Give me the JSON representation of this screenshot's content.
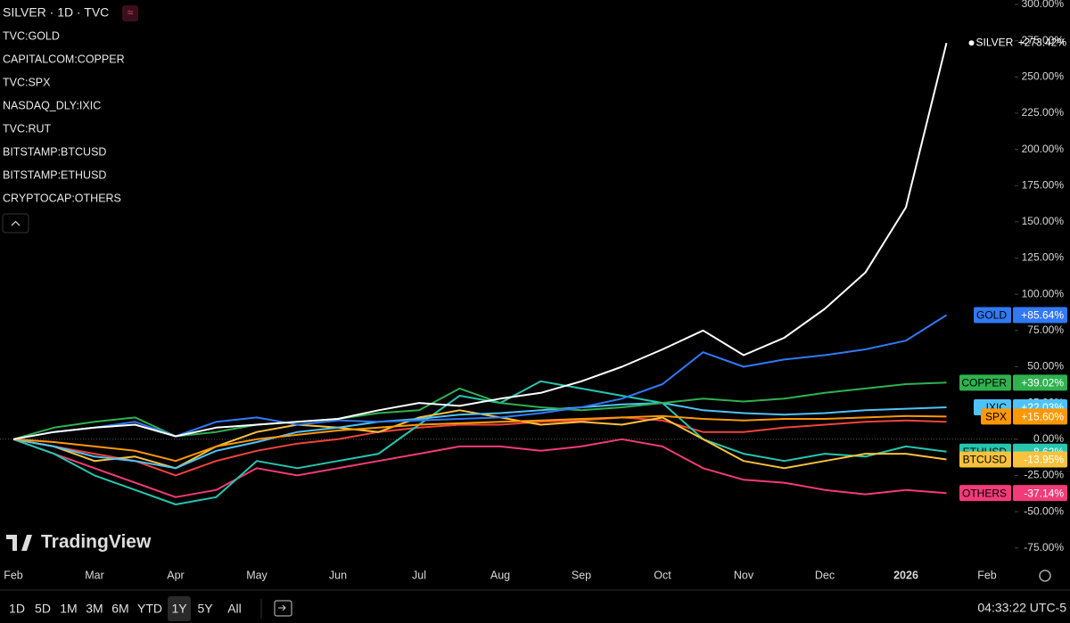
{
  "chart_data": {
    "type": "line",
    "title": "SILVER · 1D · TVC",
    "symbols": [
      "TVC:GOLD",
      "CAPITALCOM:COPPER",
      "TVC:SPX",
      "NASDAQ_DLY:IXIC",
      "TVC:RUT",
      "BITSTAMP:BTCUSD",
      "BITSTAMP:ETHUSD",
      "CRYPTOCAP:OTHERS"
    ],
    "categories": [
      "Feb",
      null,
      "Mar",
      null,
      "Apr",
      null,
      "May",
      null,
      "Jun",
      null,
      "Jul",
      null,
      "Aug",
      null,
      "Sep",
      null,
      "Oct",
      null,
      "Nov",
      null,
      "Dec",
      null,
      "2026",
      null,
      "Feb"
    ],
    "ylim": [
      -85,
      300
    ],
    "yticks": [
      {
        "value": -75,
        "label": "-75.00%"
      },
      {
        "value": -50,
        "label": "-50.00%"
      },
      {
        "value": -25,
        "label": "-25.00%"
      },
      {
        "value": 0,
        "label": "0.00%"
      },
      {
        "value": 25,
        "label": "25.00%"
      },
      {
        "value": 50,
        "label": "50.00%"
      },
      {
        "value": 75,
        "label": "75.00%"
      },
      {
        "value": 100,
        "label": "100.00%"
      },
      {
        "value": 125,
        "label": "125.00%"
      },
      {
        "value": 150,
        "label": "150.00%"
      },
      {
        "value": 175,
        "label": "175.00%"
      },
      {
        "value": 200,
        "label": "200.00%"
      },
      {
        "value": 225,
        "label": "225.00%"
      },
      {
        "value": 250,
        "label": "250.00%"
      },
      {
        "value": 275,
        "label": "275.00%"
      },
      {
        "value": 300,
        "label": "300.00%"
      }
    ],
    "grid": false,
    "series": [
      {
        "name": "RUT",
        "color": "#f0443a",
        "values": [
          0,
          -5,
          -10,
          -15,
          -25,
          -15,
          -8,
          -3,
          0,
          5,
          8,
          10,
          10,
          12,
          13,
          15,
          13,
          5,
          5,
          8,
          10,
          12,
          13,
          12,
          null
        ]
      },
      {
        "name": "OTHERS",
        "color": "#f23b78",
        "values": [
          0,
          -10,
          -20,
          -30,
          -40,
          -35,
          -20,
          -25,
          -20,
          -15,
          -10,
          -5,
          -5,
          -8,
          -5,
          0,
          -5,
          -20,
          -28,
          -30,
          -35,
          -38,
          -35,
          -37.14,
          null
        ],
        "value_labels": [
          null,
          null,
          null,
          null,
          null,
          null,
          null,
          null,
          null,
          null,
          null,
          null,
          null,
          null,
          null,
          null,
          null,
          null,
          null,
          null,
          null,
          null,
          null,
          "-37.14%",
          null
        ]
      },
      {
        "name": "ETHUSD",
        "color": "#26c6b0",
        "values": [
          0,
          -10,
          -25,
          -35,
          -45,
          -40,
          -15,
          -20,
          -15,
          -10,
          10,
          30,
          25,
          40,
          35,
          30,
          25,
          0,
          -10,
          -15,
          -10,
          -12,
          -5,
          -8.62,
          null
        ],
        "value_labels": [
          null,
          null,
          null,
          null,
          null,
          null,
          null,
          null,
          null,
          null,
          null,
          null,
          null,
          null,
          null,
          null,
          null,
          null,
          null,
          null,
          null,
          null,
          null,
          "-8.62%",
          null
        ]
      },
      {
        "name": "BTCUSD",
        "color": "#f9c23c",
        "values": [
          0,
          -5,
          -15,
          -12,
          -20,
          -5,
          5,
          10,
          8,
          5,
          15,
          20,
          15,
          10,
          12,
          10,
          15,
          0,
          -15,
          -20,
          -15,
          -10,
          -10,
          -13.95,
          null
        ],
        "value_labels": [
          null,
          null,
          null,
          null,
          null,
          null,
          null,
          null,
          null,
          null,
          null,
          null,
          null,
          null,
          null,
          null,
          null,
          null,
          null,
          null,
          null,
          null,
          null,
          "-13.95%",
          null
        ]
      },
      {
        "name": "IXIC",
        "color": "#4fc3f7",
        "values": [
          0,
          -5,
          -12,
          -15,
          -20,
          -8,
          -2,
          5,
          8,
          12,
          14,
          17,
          18,
          20,
          22,
          24,
          25,
          20,
          18,
          17,
          18,
          20,
          21,
          22.03,
          null
        ],
        "value_labels": [
          null,
          null,
          null,
          null,
          null,
          null,
          null,
          null,
          null,
          null,
          null,
          null,
          null,
          null,
          null,
          null,
          null,
          null,
          null,
          null,
          null,
          null,
          null,
          "+22.03%",
          null
        ]
      },
      {
        "name": "SPX",
        "color": "#ff9800",
        "values": [
          0,
          -2,
          -5,
          -8,
          -15,
          -5,
          0,
          3,
          6,
          8,
          10,
          11,
          12,
          13,
          14,
          15,
          16,
          14,
          13,
          14,
          14,
          15,
          16,
          15.6,
          null
        ],
        "value_labels": [
          null,
          null,
          null,
          null,
          null,
          null,
          null,
          null,
          null,
          null,
          null,
          null,
          null,
          null,
          null,
          null,
          null,
          null,
          null,
          null,
          null,
          null,
          null,
          "+15.60%",
          null
        ]
      },
      {
        "name": "COPPER",
        "color": "#2fb14f",
        "values": [
          0,
          8,
          12,
          15,
          2,
          5,
          10,
          12,
          14,
          18,
          20,
          35,
          25,
          22,
          20,
          22,
          25,
          28,
          26,
          28,
          32,
          35,
          38,
          39.02,
          null
        ],
        "value_labels": [
          null,
          null,
          null,
          null,
          null,
          null,
          null,
          null,
          null,
          null,
          null,
          null,
          null,
          null,
          null,
          null,
          null,
          null,
          null,
          null,
          null,
          null,
          null,
          "+39.02%",
          null
        ]
      },
      {
        "name": "GOLD",
        "color": "#3179f5",
        "values": [
          0,
          5,
          8,
          12,
          2,
          12,
          15,
          10,
          13,
          12,
          13,
          14,
          15,
          18,
          22,
          28,
          38,
          60,
          50,
          55,
          58,
          62,
          68,
          85.64,
          null
        ],
        "value_labels": [
          null,
          null,
          null,
          null,
          null,
          null,
          null,
          null,
          null,
          null,
          null,
          null,
          null,
          null,
          null,
          null,
          null,
          null,
          null,
          null,
          null,
          null,
          null,
          "+85.64%",
          null
        ]
      },
      {
        "name": "SILVER",
        "color": "#ffffff",
        "values": [
          0,
          5,
          8,
          10,
          2,
          8,
          10,
          12,
          14,
          20,
          25,
          23,
          28,
          32,
          40,
          50,
          62,
          75,
          58,
          70,
          90,
          115,
          160,
          273.42,
          null
        ],
        "value_labels": [
          null,
          null,
          null,
          null,
          null,
          null,
          null,
          null,
          null,
          null,
          null,
          null,
          null,
          null,
          null,
          null,
          null,
          null,
          null,
          null,
          null,
          null,
          null,
          "+273.42%",
          null
        ]
      }
    ]
  },
  "watermark": "TradingView",
  "toolbar": {
    "ranges": [
      "1D",
      "5D",
      "1M",
      "3M",
      "6M",
      "YTD",
      "1Y",
      "5Y",
      "All"
    ],
    "time": "04:33:22 UTC-5"
  }
}
